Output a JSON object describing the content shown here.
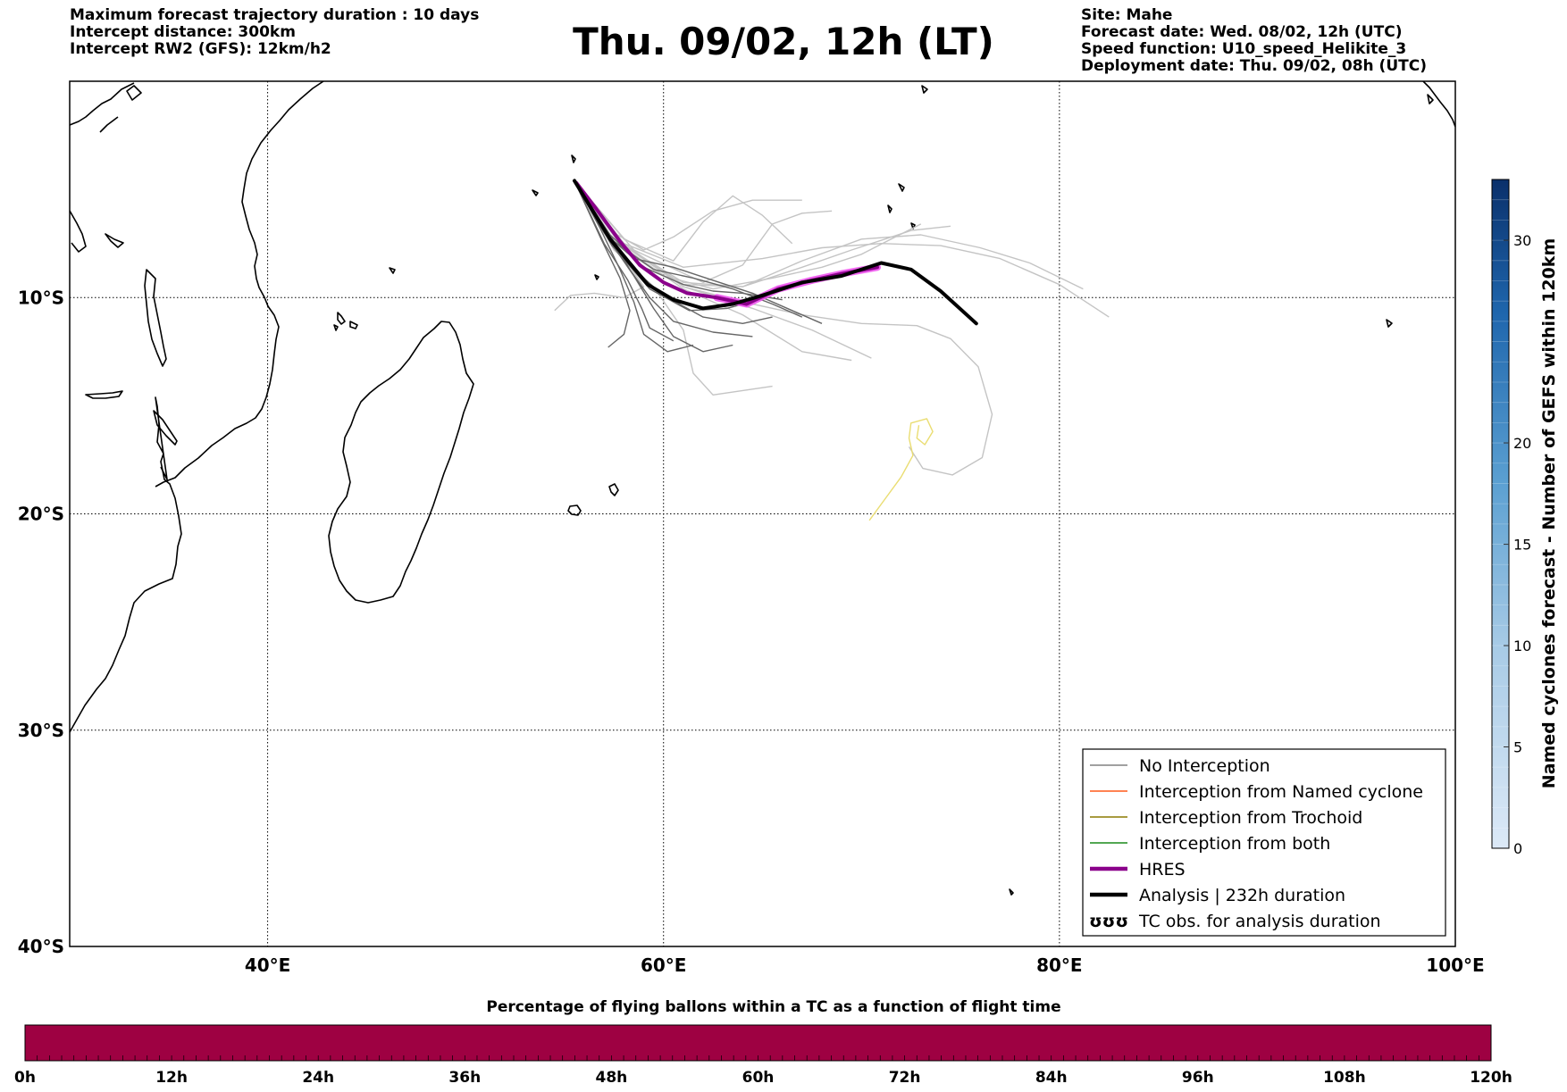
{
  "header": {
    "left_lines": [
      "Maximum forecast trajectory duration : 10 days",
      "Intercept distance: 300km",
      "Intercept RW2 (GFS):  12km/h2"
    ],
    "right_lines": [
      "Site: Mahe",
      "Forecast date: Wed. 08/02, 12h (UTC)",
      "Speed function: U10_speed_Helikite_3",
      "Deployment date: Thu. 09/02, 08h (UTC)"
    ],
    "title": "Thu. 09/02, 12h (LT)"
  },
  "map": {
    "lon_range": [
      30,
      100
    ],
    "lat_range": [
      -40,
      0
    ],
    "lon_ticks": [
      {
        "value": 40,
        "label": "40°E"
      },
      {
        "value": 60,
        "label": "60°E"
      },
      {
        "value": 80,
        "label": "80°E"
      },
      {
        "value": 100,
        "label": "100°E"
      }
    ],
    "lat_ticks": [
      {
        "value": -10,
        "label": "10°S"
      },
      {
        "value": -20,
        "label": "20°S"
      },
      {
        "value": -30,
        "label": "30°S"
      },
      {
        "value": -40,
        "label": "40°S"
      }
    ],
    "grid": true,
    "coastline_color": "#000000"
  },
  "trajectories": {
    "analysis": [
      [
        55.5,
        -4.6
      ],
      [
        56.3,
        -5.8
      ],
      [
        57.3,
        -7.3
      ],
      [
        58.2,
        -8.3
      ],
      [
        59.2,
        -9.4
      ],
      [
        60.5,
        -10.1
      ],
      [
        62,
        -10.5
      ],
      [
        63.5,
        -10.3
      ],
      [
        65,
        -9.9
      ],
      [
        67,
        -9.3
      ],
      [
        69,
        -9.0
      ],
      [
        71,
        -8.4
      ],
      [
        72.5,
        -8.7
      ],
      [
        74,
        -9.7
      ],
      [
        75.8,
        -11.2
      ]
    ],
    "hres": [
      [
        55.6,
        -4.7
      ],
      [
        56.6,
        -5.9
      ],
      [
        57.8,
        -7.4
      ],
      [
        58.8,
        -8.5
      ],
      [
        60,
        -9.3
      ],
      [
        61.2,
        -9.8
      ],
      [
        62.7,
        -10.0
      ],
      [
        64.2,
        -10.3
      ],
      [
        65.8,
        -9.6
      ],
      [
        67.5,
        -9.2
      ],
      [
        69,
        -8.9
      ],
      [
        70.8,
        -8.6
      ]
    ],
    "ensemble_dark": [
      [
        [
          55.5,
          -4.6
        ],
        [
          57,
          -7
        ],
        [
          58.5,
          -9
        ],
        [
          59.5,
          -10.5
        ],
        [
          60.5,
          -11.8
        ],
        [
          62,
          -12.5
        ],
        [
          63.5,
          -12.2
        ]
      ],
      [
        [
          55.5,
          -4.6
        ],
        [
          56.8,
          -6.8
        ],
        [
          57.8,
          -8.7
        ],
        [
          58.5,
          -10.2
        ],
        [
          59,
          -11.7
        ],
        [
          60.2,
          -12.5
        ],
        [
          61.5,
          -12.2
        ]
      ],
      [
        [
          55.5,
          -4.6
        ],
        [
          57.2,
          -7.2
        ],
        [
          58.6,
          -8.8
        ],
        [
          60,
          -9.9
        ],
        [
          62,
          -10.9
        ],
        [
          64,
          -11.2
        ],
        [
          65.5,
          -10.9
        ]
      ],
      [
        [
          55.5,
          -4.6
        ],
        [
          57.1,
          -6.9
        ],
        [
          58.3,
          -8.7
        ],
        [
          59.3,
          -10
        ],
        [
          60.5,
          -11.1
        ],
        [
          62.5,
          -11.6
        ],
        [
          64.5,
          -11.8
        ]
      ],
      [
        [
          55.5,
          -4.6
        ],
        [
          57.5,
          -7.4
        ],
        [
          59.5,
          -8.7
        ],
        [
          61.5,
          -9.1
        ],
        [
          63.5,
          -9.6
        ],
        [
          65.5,
          -10.3
        ],
        [
          67,
          -10.9
        ]
      ],
      [
        [
          55.5,
          -4.6
        ],
        [
          57,
          -7.5
        ],
        [
          58.2,
          -9.2
        ],
        [
          58.9,
          -10.5
        ],
        [
          59.3,
          -11.4
        ],
        [
          60.5,
          -12.0
        ]
      ],
      [
        [
          55.5,
          -4.6
        ],
        [
          57.3,
          -7.1
        ],
        [
          59,
          -8.6
        ],
        [
          61,
          -9.4
        ],
        [
          62.5,
          -9.7
        ],
        [
          64,
          -9.8
        ],
        [
          66,
          -10.1
        ]
      ],
      [
        [
          55.5,
          -4.6
        ],
        [
          56.8,
          -7.2
        ],
        [
          57.8,
          -9.1
        ],
        [
          58.3,
          -10.6
        ],
        [
          58,
          -11.7
        ],
        [
          57.2,
          -12.3
        ]
      ],
      [
        [
          55.5,
          -4.6
        ],
        [
          57.4,
          -7.6
        ],
        [
          59.3,
          -9.6
        ],
        [
          61.3,
          -10.6
        ],
        [
          63.2,
          -10.5
        ],
        [
          65.2,
          -10.0
        ]
      ],
      [
        [
          55.5,
          -4.6
        ],
        [
          57.0,
          -7.0
        ],
        [
          58.5,
          -8.2
        ],
        [
          60.5,
          -8.6
        ],
        [
          62.5,
          -9.2
        ],
        [
          64.5,
          -9.8
        ],
        [
          66.5,
          -10.6
        ],
        [
          68,
          -11.2
        ]
      ]
    ],
    "ensemble_light": [
      [
        [
          55.5,
          -4.6
        ],
        [
          58,
          -7.5
        ],
        [
          61,
          -8.6
        ],
        [
          65,
          -8.2
        ],
        [
          68,
          -7.7
        ],
        [
          71,
          -7.5
        ],
        [
          74,
          -7.6
        ],
        [
          77,
          -8.2
        ],
        [
          80,
          -9.4
        ],
        [
          82.5,
          -10.9
        ]
      ],
      [
        [
          55.5,
          -4.6
        ],
        [
          58,
          -7.6
        ],
        [
          61,
          -9.4
        ],
        [
          64,
          -9.5
        ],
        [
          67,
          -8.3
        ],
        [
          70,
          -7.3
        ],
        [
          73,
          -7.1
        ],
        [
          76,
          -7.7
        ],
        [
          78.5,
          -8.4
        ],
        [
          81.2,
          -9.6
        ]
      ],
      [
        [
          55.5,
          -4.6
        ],
        [
          58,
          -7.3
        ],
        [
          60.5,
          -8.3
        ],
        [
          62,
          -6.5
        ],
        [
          63.5,
          -5.3
        ],
        [
          65,
          -6.2
        ],
        [
          66.5,
          -7.5
        ]
      ],
      [
        [
          55.5,
          -4.6
        ],
        [
          58.5,
          -7.8
        ],
        [
          62,
          -9.3
        ],
        [
          64,
          -8.5
        ],
        [
          65.5,
          -6.6
        ],
        [
          67,
          -6.1
        ],
        [
          68.5,
          -6.0
        ]
      ],
      [
        [
          55.5,
          -4.6
        ],
        [
          58,
          -7.5
        ],
        [
          61,
          -9.5
        ],
        [
          64,
          -10.2
        ],
        [
          67,
          -10.8
        ],
        [
          70,
          -11.2
        ],
        [
          72.8,
          -11.3
        ],
        [
          74.5,
          -11.9
        ],
        [
          75.9,
          -13.2
        ],
        [
          76.6,
          -15.4
        ],
        [
          76.1,
          -17.4
        ],
        [
          74.6,
          -18.2
        ],
        [
          73.1,
          -17.9
        ],
        [
          72.4,
          -16.9
        ]
      ],
      [
        [
          55.5,
          -4.6
        ],
        [
          58,
          -7.6
        ],
        [
          61,
          -9.5
        ],
        [
          64.5,
          -10.5
        ],
        [
          67.5,
          -11.5
        ],
        [
          70.5,
          -12.8
        ]
      ],
      [
        [
          55.5,
          -4.6
        ],
        [
          57.5,
          -7.8
        ],
        [
          59.5,
          -9.5
        ],
        [
          61,
          -11.5
        ],
        [
          61.5,
          -13.5
        ],
        [
          62.5,
          -14.5
        ],
        [
          64,
          -14.3
        ],
        [
          65.5,
          -14.1
        ]
      ],
      [
        [
          55.5,
          -4.6
        ],
        [
          58,
          -7.8
        ],
        [
          60,
          -9
        ],
        [
          62.5,
          -9.6
        ],
        [
          65.5,
          -9.1
        ],
        [
          68,
          -8.6
        ],
        [
          70,
          -8.0
        ],
        [
          71.5,
          -7.3
        ],
        [
          73,
          -6.6
        ]
      ],
      [
        [
          55.5,
          -4.6
        ],
        [
          57.5,
          -7.5
        ],
        [
          59,
          -9.5
        ],
        [
          58,
          -10.0
        ],
        [
          56.5,
          -9.8
        ],
        [
          55.3,
          -9.9
        ],
        [
          54.5,
          -10.6
        ]
      ],
      [
        [
          55.5,
          -4.6
        ],
        [
          58,
          -7.7
        ],
        [
          61,
          -9.6
        ],
        [
          64,
          -10.8
        ],
        [
          67,
          -12.5
        ],
        [
          69.5,
          -12.9
        ]
      ],
      [
        [
          55.5,
          -4.6
        ],
        [
          58,
          -7.6
        ],
        [
          61,
          -9.3
        ],
        [
          64,
          -9.5
        ],
        [
          67,
          -8.6
        ],
        [
          69.5,
          -7.8
        ],
        [
          72.5,
          -6.9
        ],
        [
          74.5,
          -6.7
        ]
      ],
      [
        [
          55.5,
          -4.6
        ],
        [
          57.3,
          -6.9
        ],
        [
          59,
          -7.8
        ],
        [
          60.5,
          -7.2
        ],
        [
          62.5,
          -6.0
        ],
        [
          64.5,
          -5.5
        ],
        [
          67,
          -5.5
        ]
      ]
    ],
    "trochoid_yellow": [
      [
        70.4,
        -20.3
      ],
      [
        71.2,
        -19.3
      ],
      [
        72.0,
        -18.3
      ],
      [
        72.6,
        -17.3
      ],
      [
        72.4,
        -16.5
      ],
      [
        72.5,
        -15.8
      ],
      [
        73.3,
        -15.6
      ],
      [
        73.6,
        -16.2
      ],
      [
        73.2,
        -16.8
      ],
      [
        72.8,
        -16.5
      ],
      [
        72.9,
        -15.9
      ]
    ],
    "colors": {
      "analysis": "#000000",
      "hres": "#8b008b",
      "hres_highlight": "#ee55ee",
      "ensemble_dark": "#666666",
      "ensemble_light": "#c4c4c4",
      "trochoid": "#eadd72"
    }
  },
  "legend": {
    "position": "lower-right",
    "items": [
      {
        "label": "No Interception",
        "color": "#808080",
        "style": "thin"
      },
      {
        "label": "Interception from Named cyclone",
        "color": "#ff5a1a",
        "style": "thin"
      },
      {
        "label": "Interception from Trochoid",
        "color": "#8b7a00",
        "style": "thin"
      },
      {
        "label": "Interception from both",
        "color": "#1a8a1a",
        "style": "thin"
      },
      {
        "label": "HRES",
        "color": "#8b008b",
        "style": "thick"
      },
      {
        "label": "Analysis | 232h duration",
        "color": "#000000",
        "style": "thick"
      },
      {
        "label": "TC obs. for analysis duration",
        "color": "#000000",
        "style": "symbol",
        "symbol": "ʊʊʊ"
      }
    ]
  },
  "colorbar_right": {
    "title": "Named cyclones forecast - Number of GEFS within 120km",
    "min": 0,
    "max": 33,
    "ticks": [
      0,
      5,
      10,
      15,
      20,
      30
    ],
    "color_low": "#dce9f7",
    "color_high": "#0a306b"
  },
  "colorbar_bottom": {
    "title": "Percentage of flying ballons within a TC as a function of flight time",
    "ticks": [
      "0h",
      "12h",
      "24h",
      "36h",
      "48h",
      "60h",
      "72h",
      "84h",
      "96h",
      "108h",
      "120h"
    ],
    "fill_color": "#9e0142"
  }
}
